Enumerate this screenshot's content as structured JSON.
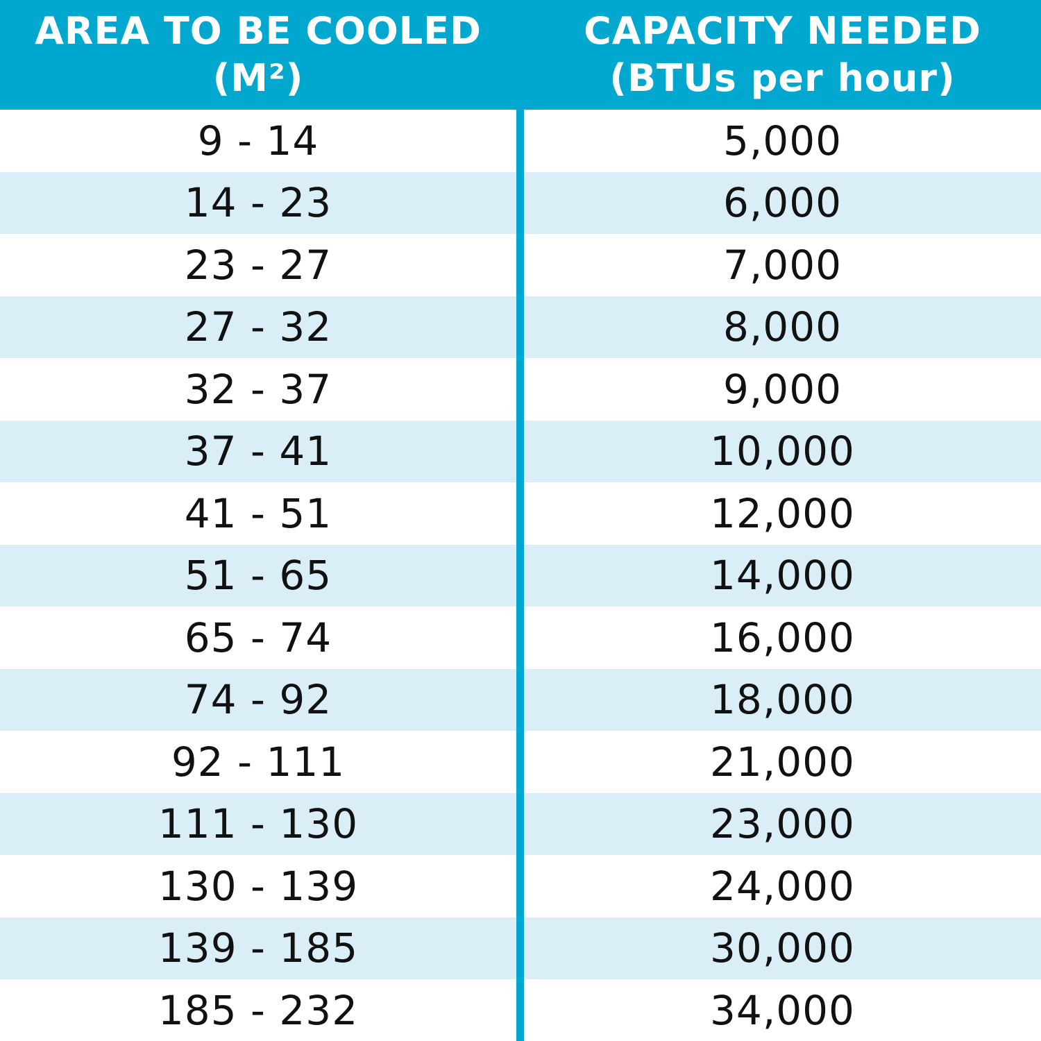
{
  "header": {
    "area_line1": "AREA TO BE COOLED",
    "area_line2": "(M²)",
    "capacity_line1": "CAPACITY NEEDED",
    "capacity_line2": "(BTUs per hour)"
  },
  "rows": [
    {
      "area": "9 - 14",
      "capacity": "5,000"
    },
    {
      "area": "14 - 23",
      "capacity": "6,000"
    },
    {
      "area": "23 - 27",
      "capacity": "7,000"
    },
    {
      "area": "27 - 32",
      "capacity": "8,000"
    },
    {
      "area": "32 - 37",
      "capacity": "9,000"
    },
    {
      "area": "37 - 41",
      "capacity": "10,000"
    },
    {
      "area": "41 - 51",
      "capacity": "12,000"
    },
    {
      "area": "51 - 65",
      "capacity": "14,000"
    },
    {
      "area": "65 - 74",
      "capacity": "16,000"
    },
    {
      "area": "74 - 92",
      "capacity": "18,000"
    },
    {
      "area": "92 - 111",
      "capacity": "21,000"
    },
    {
      "area": "111 - 130",
      "capacity": "23,000"
    },
    {
      "area": "130 - 139",
      "capacity": "24,000"
    },
    {
      "area": "139 - 185",
      "capacity": "30,000"
    },
    {
      "area": "185 - 232",
      "capacity": "34,000"
    }
  ],
  "colors": {
    "header_bg": "#00a7cf",
    "stripe_bg": "#daeef7",
    "text": "#111111",
    "header_text": "#ffffff"
  }
}
